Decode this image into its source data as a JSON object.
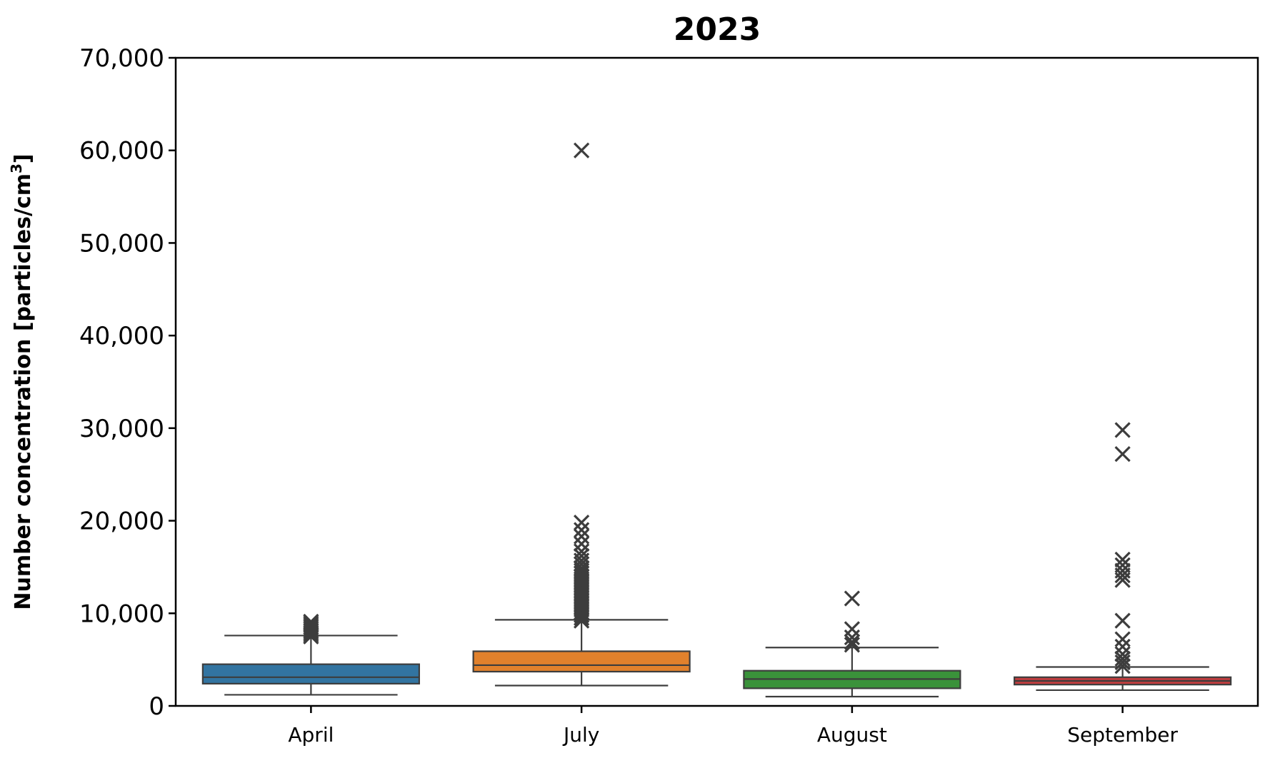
{
  "chart_data": {
    "type": "box",
    "title": "2023",
    "xlabel": "",
    "ylabel": "Number concentration [particles/cm",
    "ylabel_sup": "3",
    "ylabel_end": "]",
    "ylim": [
      0,
      70000
    ],
    "yticks": [
      0,
      10000,
      20000,
      30000,
      40000,
      50000,
      60000,
      70000
    ],
    "ytick_labels": [
      "0",
      "10,000",
      "20,000",
      "30,000",
      "40,000",
      "50,000",
      "60,000",
      "70,000"
    ],
    "categories": [
      "April",
      "July",
      "August",
      "September"
    ],
    "grid": false,
    "outlier_marker": "x",
    "boxes": [
      {
        "category": "April",
        "color": "#3274a1",
        "whisker_low": 1200,
        "q1": 2400,
        "median": 3100,
        "q3": 4500,
        "whisker_high": 7600,
        "outliers": [
          7500,
          7700,
          7900,
          8100,
          8300,
          8500,
          8700,
          8900,
          9100
        ]
      },
      {
        "category": "July",
        "color": "#e1812c",
        "whisker_low": 2200,
        "q1": 3700,
        "median": 4400,
        "q3": 5900,
        "whisker_high": 9300,
        "outliers": [
          9200,
          9500,
          9800,
          10100,
          10400,
          10700,
          11000,
          11300,
          11600,
          11900,
          12200,
          12500,
          12800,
          13100,
          13400,
          13700,
          14000,
          14300,
          14600,
          14900,
          15300,
          15700,
          16200,
          16700,
          17500,
          18300,
          19000,
          19800,
          60000
        ]
      },
      {
        "category": "August",
        "color": "#3a923a",
        "whisker_low": 1000,
        "q1": 1900,
        "median": 2900,
        "q3": 3800,
        "whisker_high": 6300,
        "outliers": [
          6600,
          6900,
          7400,
          8300,
          11600
        ]
      },
      {
        "category": "September",
        "color": "#c03d3e",
        "whisker_low": 1700,
        "q1": 2300,
        "median": 2700,
        "q3": 3100,
        "whisker_high": 4200,
        "outliers": [
          4300,
          4700,
          5100,
          5600,
          6400,
          7200,
          9200,
          13600,
          14100,
          14600,
          15200,
          15800,
          27200,
          29800
        ]
      }
    ]
  }
}
